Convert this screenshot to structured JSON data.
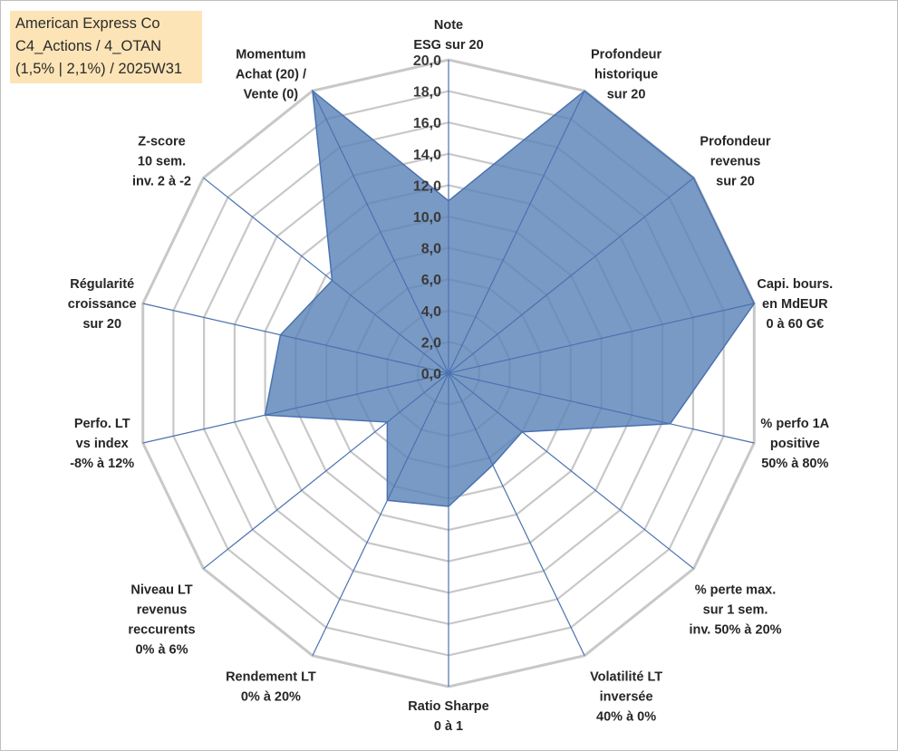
{
  "info_box": {
    "line1": "American Express Co",
    "line2": "C4_Actions / 4_OTAN",
    "line3": "(1,5% | 2,1%) / 2025W31"
  },
  "chart_data": {
    "type": "radar",
    "rmax": 20,
    "ticks": [
      "0,0",
      "2,0",
      "4,0",
      "6,0",
      "8,0",
      "10,0",
      "12,0",
      "14,0",
      "16,0",
      "18,0",
      "20,0"
    ],
    "axes": [
      {
        "label": [
          "Note",
          "ESG sur 20"
        ],
        "value": 11
      },
      {
        "label": [
          "Profondeur",
          "historique",
          "sur 20"
        ],
        "value": 20
      },
      {
        "label": [
          "Profondeur",
          "revenus",
          "sur 20"
        ],
        "value": 20
      },
      {
        "label": [
          "Capi. bours.",
          "en MdEUR",
          "0 à 60 G€"
        ],
        "value": 20
      },
      {
        "label": [
          "% perfo 1A",
          "positive",
          "50% à 80%"
        ],
        "value": 14.5
      },
      {
        "label": [
          "% perte max.",
          "sur 1 sem.",
          "inv. 50% à 20%"
        ],
        "value": 6
      },
      {
        "label": [
          "Volatilité LT",
          "inversée",
          "40% à 0%"
        ],
        "value": 6.5
      },
      {
        "label": [
          "Ratio Sharpe",
          "0 à 1"
        ],
        "value": 8.5
      },
      {
        "label": [
          "Rendement LT",
          "0% à 20%"
        ],
        "value": 9
      },
      {
        "label": [
          "Niveau LT",
          "revenus",
          "reccurents",
          "0% à 6%"
        ],
        "value": 5
      },
      {
        "label": [
          "Perfo. LT",
          "vs index",
          "-8% à 12%"
        ],
        "value": 12
      },
      {
        "label": [
          "Régularité",
          "croissance",
          "sur 20"
        ],
        "value": 11
      },
      {
        "label": [
          "Z-score",
          "10 sem.",
          "inv. 2 à -2"
        ],
        "value": 9.5
      },
      {
        "label": [
          "Momentum",
          "Achat (20) /",
          "Vente (0)"
        ],
        "value": 20
      }
    ],
    "colors": {
      "fill": "#5b84b8",
      "stroke": "#4a72b0",
      "grid": "#c8c8c8",
      "spoke": "#4a72b0"
    }
  }
}
